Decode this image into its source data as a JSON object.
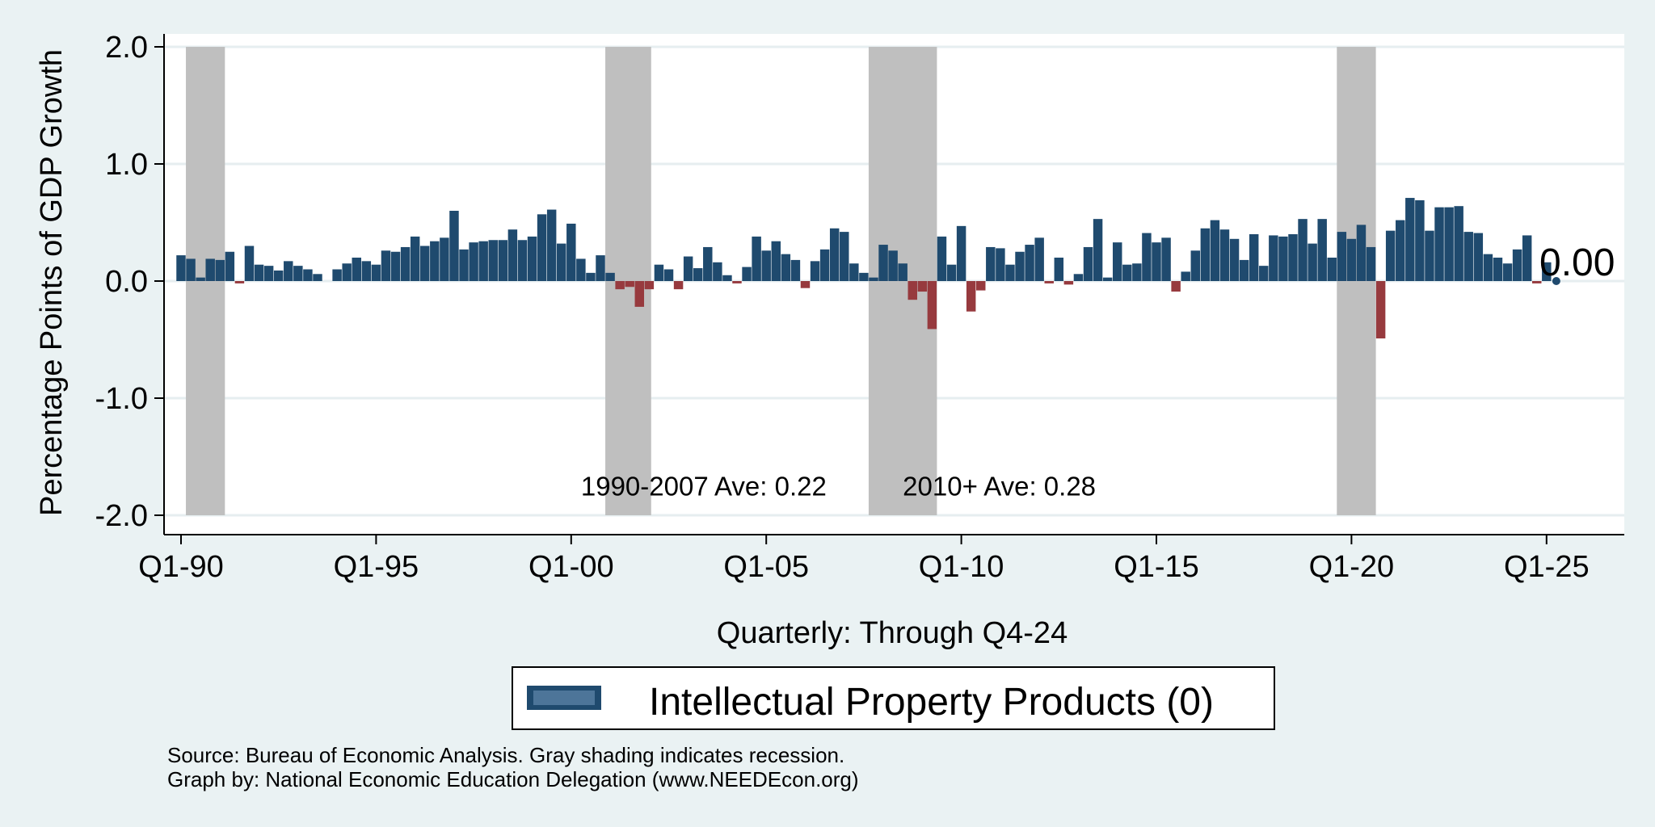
{
  "chart_data": {
    "type": "bar",
    "title": "",
    "xlabel": "Quarterly: Through Q4-24",
    "ylabel": "Percentage Points of GDP Growth",
    "ylim": [
      -2.0,
      2.0
    ],
    "y_ticks": [
      "2.0",
      "1.0",
      "0.0",
      "-1.0",
      "-2.0"
    ],
    "y_tick_values": [
      2.0,
      1.0,
      0.0,
      -1.0,
      -2.0
    ],
    "x_ticks": [
      "Q1-90",
      "Q1-95",
      "Q1-00",
      "Q1-05",
      "Q1-10",
      "Q1-15",
      "Q1-20",
      "Q1-25"
    ],
    "x_tick_quarter_index": [
      0,
      20,
      40,
      60,
      80,
      100,
      120,
      140
    ],
    "start_quarter": "Q1-90",
    "series": [
      {
        "name": "Intellectual Property Products (0)",
        "color_positive": "#1f4a6e",
        "color_negative": "#973a3e",
        "values": [
          0.22,
          0.19,
          0.03,
          0.19,
          0.18,
          0.25,
          -0.02,
          0.3,
          0.14,
          0.13,
          0.09,
          0.17,
          0.13,
          0.1,
          0.06,
          0.0,
          0.1,
          0.15,
          0.2,
          0.17,
          0.14,
          0.26,
          0.25,
          0.29,
          0.38,
          0.3,
          0.34,
          0.37,
          0.6,
          0.27,
          0.33,
          0.34,
          0.35,
          0.35,
          0.44,
          0.35,
          0.38,
          0.57,
          0.61,
          0.32,
          0.49,
          0.19,
          0.07,
          0.22,
          0.07,
          -0.07,
          -0.05,
          -0.22,
          -0.07,
          0.14,
          0.1,
          -0.07,
          0.21,
          0.11,
          0.29,
          0.16,
          0.05,
          -0.02,
          0.12,
          0.38,
          0.26,
          0.34,
          0.23,
          0.18,
          -0.06,
          0.17,
          0.27,
          0.45,
          0.42,
          0.15,
          0.07,
          0.03,
          0.31,
          0.26,
          0.15,
          -0.16,
          -0.09,
          -0.41,
          0.38,
          0.14,
          0.47,
          -0.26,
          -0.08,
          0.29,
          0.28,
          0.14,
          0.25,
          0.31,
          0.37,
          -0.02,
          0.2,
          -0.03,
          0.06,
          0.29,
          0.53,
          0.03,
          0.33,
          0.14,
          0.15,
          0.41,
          0.33,
          0.37,
          -0.09,
          0.08,
          0.26,
          0.45,
          0.52,
          0.44,
          0.36,
          0.18,
          0.4,
          0.13,
          0.39,
          0.38,
          0.4,
          0.53,
          0.32,
          0.53,
          0.2,
          0.42,
          0.36,
          0.48,
          0.29,
          -0.49,
          0.43,
          0.52,
          0.71,
          0.69,
          0.43,
          0.63,
          0.63,
          0.64,
          0.42,
          0.41,
          0.23,
          0.2,
          0.15,
          0.27,
          0.39,
          -0.02,
          0.16,
          0.0
        ]
      }
    ],
    "recessions": [
      {
        "label": "1990-91",
        "start_q": 0.5,
        "end_q": 4.5
      },
      {
        "label": "2001",
        "start_q": 43.5,
        "end_q": 48.2
      },
      {
        "label": "2007-09",
        "start_q": 70.5,
        "end_q": 77.5
      },
      {
        "label": "2020",
        "start_q": 118.5,
        "end_q": 122.5
      }
    ],
    "annotations": [
      {
        "text": "1990-2007 Ave: 0.22",
        "q": 41.0,
        "y": -1.83
      },
      {
        "text": "2010+ Ave: 0.28",
        "q": 74.0,
        "y": -1.83
      }
    ],
    "last_value_label": "0.00",
    "legend": {
      "position": "bottom",
      "label": "Intellectual Property Products (0)"
    }
  },
  "footnotes": {
    "source": "Source: Bureau of Economic Analysis. Gray shading indicates recession.",
    "credit": "Graph by: National Economic Education Delegation (www.NEEDEcon.org)"
  },
  "colors": {
    "background": "#eaf2f3",
    "plot_background": "#ffffff",
    "gridline": "#e6eef0",
    "recession": "#bfbfbf"
  }
}
